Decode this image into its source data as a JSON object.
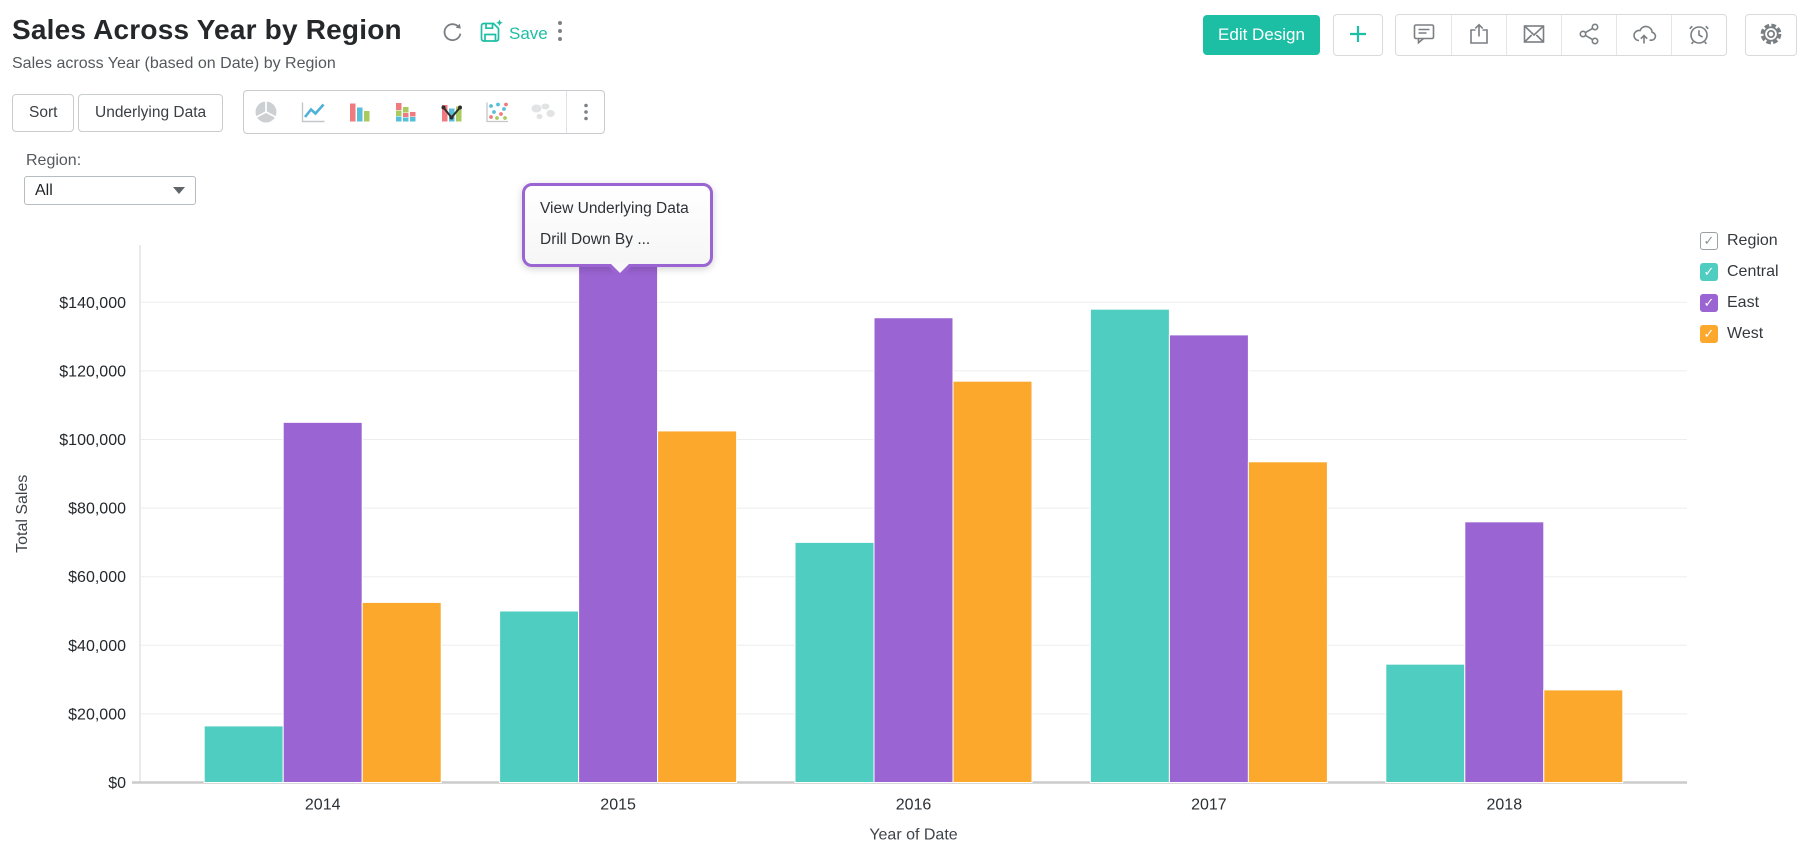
{
  "header": {
    "title": "Sales Across Year by Region",
    "subtitle": "Sales across Year (based on Date) by Region",
    "save_label": "Save",
    "edit_design_label": "Edit Design",
    "right_icons": [
      "add",
      "comments",
      "export",
      "email",
      "share",
      "publish",
      "schedule",
      "settings"
    ]
  },
  "toolbar": {
    "sort_label": "Sort",
    "underlying_data_label": "Underlying Data",
    "chart_types": [
      "pie",
      "line",
      "bar",
      "stacked-bar",
      "combination",
      "scatter",
      "map"
    ]
  },
  "filter": {
    "label": "Region:",
    "value": "All"
  },
  "context_menu": {
    "items": [
      "View Underlying Data",
      "Drill Down By ..."
    ]
  },
  "legend": {
    "title": "Region",
    "items": [
      {
        "label": "Central",
        "color": "#4fcdc0",
        "checked": true
      },
      {
        "label": "East",
        "color": "#9b64d3",
        "checked": true
      },
      {
        "label": "West",
        "color": "#fba82c",
        "checked": true
      }
    ]
  },
  "chart_data": {
    "type": "bar",
    "title": "Sales Across Year by Region",
    "categories": [
      "2014",
      "2015",
      "2016",
      "2017",
      "2018"
    ],
    "series": [
      {
        "name": "Central",
        "color": "#4fcdc0",
        "values": [
          16500,
          50000,
          70000,
          138000,
          34500
        ]
      },
      {
        "name": "East",
        "color": "#9b64d3",
        "values": [
          105000,
          150500,
          135500,
          130500,
          76000
        ]
      },
      {
        "name": "West",
        "color": "#fba82c",
        "values": [
          52500,
          102500,
          117000,
          93500,
          27000
        ]
      }
    ],
    "xlabel": "Year of Date",
    "ylabel": "Total Sales",
    "ylim": [
      0,
      160000
    ],
    "yticks": [
      0,
      20000,
      40000,
      60000,
      80000,
      100000,
      120000,
      140000
    ],
    "ytick_prefix": "$",
    "grid": true,
    "legend_position": "right"
  },
  "colors": {
    "accent": "#1dbfa4",
    "menu_border": "#9b64d3"
  }
}
